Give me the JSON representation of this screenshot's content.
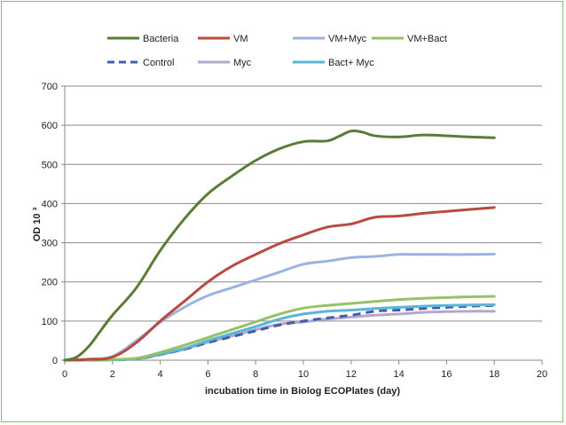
{
  "chart_data": {
    "type": "line",
    "xlabel": "incubation time in Biolog ECOPlates (day)",
    "ylabel": "OD 10 ³",
    "xlim": [
      0,
      20
    ],
    "ylim": [
      0,
      700
    ],
    "xticks": [
      0,
      2,
      4,
      6,
      8,
      10,
      12,
      14,
      16,
      18,
      20
    ],
    "yticks": [
      0,
      100,
      200,
      300,
      400,
      500,
      600,
      700
    ],
    "grid": "horizontal",
    "legend_position": "top",
    "series": [
      {
        "name": "Bacteria",
        "color": "#5a7d36",
        "dash": false,
        "x": [
          0,
          0.5,
          1,
          1.5,
          2,
          3,
          4,
          5,
          6,
          7,
          8,
          9,
          10,
          11,
          11.5,
          12,
          12.5,
          13,
          14,
          15,
          16,
          17,
          18
        ],
        "y": [
          0,
          8,
          35,
          75,
          115,
          185,
          280,
          360,
          425,
          470,
          510,
          540,
          558,
          560,
          572,
          585,
          582,
          573,
          570,
          575,
          573,
          570,
          568
        ]
      },
      {
        "name": "VM",
        "color": "#b94a3f",
        "dash": false,
        "x": [
          0,
          1,
          2,
          3,
          4,
          5,
          6,
          7,
          8,
          9,
          10,
          11,
          12,
          13,
          14,
          15,
          16,
          17,
          18
        ],
        "y": [
          0,
          2,
          8,
          45,
          100,
          150,
          200,
          240,
          270,
          298,
          320,
          340,
          348,
          365,
          368,
          375,
          380,
          385,
          390
        ]
      },
      {
        "name": "VM+Myc",
        "color": "#9bb4de",
        "dash": false,
        "x": [
          0,
          1,
          2,
          3,
          4,
          5,
          6,
          7,
          8,
          9,
          10,
          11,
          12,
          13,
          14,
          15,
          16,
          17,
          18
        ],
        "y": [
          0,
          3,
          10,
          50,
          97,
          135,
          165,
          185,
          205,
          225,
          245,
          253,
          262,
          265,
          270,
          270,
          270,
          270,
          271
        ]
      },
      {
        "name": "VM+Bact",
        "color": "#97c168",
        "dash": false,
        "x": [
          0,
          1,
          2,
          3,
          4,
          5,
          6,
          7,
          8,
          9,
          10,
          11,
          12,
          13,
          14,
          15,
          16,
          17,
          18
        ],
        "y": [
          0,
          1,
          2,
          5,
          20,
          38,
          58,
          78,
          98,
          118,
          133,
          140,
          145,
          150,
          155,
          158,
          160,
          162,
          163
        ]
      },
      {
        "name": "Control",
        "color": "#3f5eae",
        "dash": true,
        "x": [
          0,
          1,
          2,
          3,
          4,
          5,
          6,
          7,
          8,
          9,
          10,
          11,
          12,
          13,
          14,
          15,
          16,
          17,
          18
        ],
        "y": [
          0,
          0,
          1,
          3,
          15,
          28,
          45,
          60,
          75,
          90,
          100,
          108,
          115,
          125,
          128,
          132,
          135,
          138,
          140
        ]
      },
      {
        "name": "Myc",
        "color": "#b5a6cc",
        "dash": false,
        "x": [
          0,
          1,
          2,
          3,
          4,
          5,
          6,
          7,
          8,
          9,
          10,
          11,
          12,
          13,
          14,
          15,
          16,
          17,
          18
        ],
        "y": [
          0,
          0,
          1,
          3,
          14,
          28,
          46,
          62,
          78,
          92,
          98,
          105,
          110,
          115,
          118,
          122,
          124,
          125,
          125
        ]
      },
      {
        "name": "Bact+ Myc",
        "color": "#5ab5d8",
        "dash": false,
        "x": [
          0,
          1,
          2,
          3,
          4,
          5,
          6,
          7,
          8,
          9,
          10,
          11,
          12,
          13,
          14,
          15,
          16,
          17,
          18
        ],
        "y": [
          0,
          0,
          1,
          4,
          16,
          30,
          50,
          68,
          86,
          105,
          118,
          125,
          128,
          132,
          135,
          138,
          140,
          141,
          142
        ]
      }
    ]
  }
}
